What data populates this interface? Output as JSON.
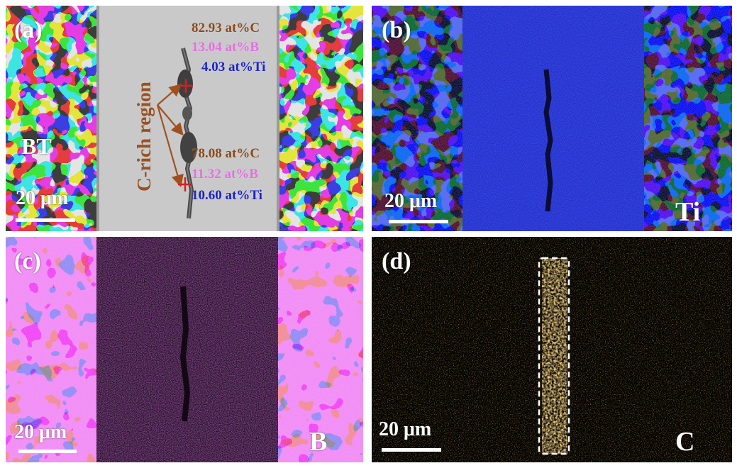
{
  "colors": {
    "matrix_gray": "#c9c9c9",
    "ti_blue": "#1e2ee8",
    "b_magenta": "#e040e8",
    "c_orange": "#e9a43a",
    "carbon_label": "#8a4a1c",
    "boron_label": "#e46ee0",
    "titanium_label": "#1a22c8",
    "marker_red": "#d81e1e"
  },
  "panels": {
    "a": {
      "label": "(a)",
      "phase_label": "BT",
      "scale_bar": "20 μm",
      "region_label": "C-rich region",
      "point1": {
        "c": "82.93 at%C",
        "b": "13.04 at%B",
        "ti": "4.03 at%Ti"
      },
      "point2": {
        "c": "78.08 at%C",
        "b": "11.32 at%B",
        "ti": "10.60 at%Ti"
      }
    },
    "b": {
      "label": "(b)",
      "scale_bar": "20 μm",
      "element": "Ti"
    },
    "c": {
      "label": "(c)",
      "scale_bar": "20 μm",
      "element": "B"
    },
    "d": {
      "label": "(d)",
      "scale_bar": "20 μm",
      "element": "C"
    }
  }
}
